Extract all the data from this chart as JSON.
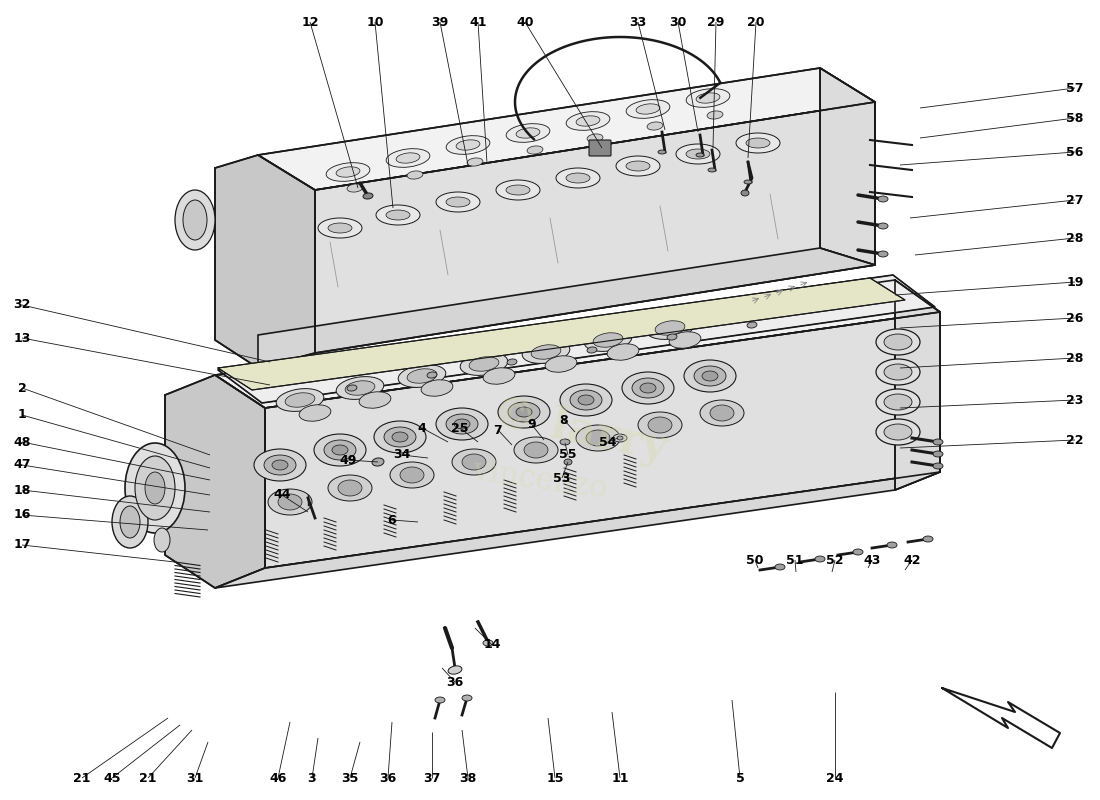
{
  "bg_color": "#ffffff",
  "lc": "#1a1a1a",
  "light_fill": "#f2f2f2",
  "mid_fill": "#e0e0e0",
  "dark_fill": "#c8c8c8",
  "yellow_fill": "#e8e8c0",
  "top_labels": [
    [
      "12",
      310,
      22,
      358,
      188
    ],
    [
      "10",
      375,
      22,
      393,
      208
    ],
    [
      "39",
      440,
      22,
      468,
      165
    ],
    [
      "41",
      478,
      22,
      487,
      163
    ],
    [
      "40",
      525,
      22,
      602,
      148
    ],
    [
      "33",
      638,
      22,
      665,
      130
    ],
    [
      "30",
      678,
      22,
      698,
      132
    ],
    [
      "29",
      716,
      22,
      713,
      148
    ],
    [
      "20",
      756,
      22,
      748,
      158
    ]
  ],
  "right_labels": [
    [
      "57",
      1075,
      88,
      920,
      108
    ],
    [
      "58",
      1075,
      118,
      920,
      138
    ],
    [
      "56",
      1075,
      152,
      900,
      165
    ],
    [
      "27",
      1075,
      200,
      910,
      218
    ],
    [
      "28",
      1075,
      238,
      915,
      255
    ],
    [
      "19",
      1075,
      282,
      895,
      295
    ],
    [
      "26",
      1075,
      318,
      900,
      328
    ],
    [
      "28",
      1075,
      358,
      900,
      368
    ],
    [
      "23",
      1075,
      400,
      900,
      408
    ],
    [
      "22",
      1075,
      440,
      900,
      448
    ]
  ],
  "left_labels": [
    [
      "32",
      22,
      305,
      270,
      362
    ],
    [
      "13",
      22,
      338,
      270,
      385
    ],
    [
      "2",
      22,
      388,
      210,
      455
    ],
    [
      "1",
      22,
      415,
      210,
      468
    ],
    [
      "48",
      22,
      442,
      210,
      480
    ],
    [
      "47",
      22,
      465,
      210,
      495
    ],
    [
      "18",
      22,
      490,
      210,
      512
    ],
    [
      "16",
      22,
      515,
      208,
      530
    ],
    [
      "17",
      22,
      545,
      175,
      562
    ]
  ],
  "bottom_labels": [
    [
      "21",
      82,
      778,
      168,
      718
    ],
    [
      "45",
      112,
      778,
      180,
      725
    ],
    [
      "21",
      148,
      778,
      192,
      730
    ],
    [
      "31",
      195,
      778,
      208,
      742
    ],
    [
      "46",
      278,
      778,
      290,
      722
    ],
    [
      "3",
      312,
      778,
      318,
      738
    ],
    [
      "35",
      350,
      778,
      360,
      742
    ],
    [
      "36",
      388,
      778,
      392,
      722
    ],
    [
      "37",
      432,
      778,
      432,
      732
    ],
    [
      "38",
      468,
      778,
      462,
      730
    ],
    [
      "15",
      555,
      778,
      548,
      718
    ],
    [
      "11",
      620,
      778,
      612,
      712
    ],
    [
      "5",
      740,
      778,
      732,
      700
    ],
    [
      "24",
      835,
      778,
      835,
      692
    ]
  ],
  "mid_labels": [
    [
      "49",
      348,
      460,
      378,
      462
    ],
    [
      "34",
      402,
      455,
      428,
      458
    ],
    [
      "44",
      282,
      495,
      308,
      512
    ],
    [
      "6",
      392,
      520,
      418,
      522
    ],
    [
      "4",
      422,
      428,
      448,
      442
    ],
    [
      "25",
      460,
      428,
      478,
      442
    ],
    [
      "7",
      498,
      430,
      512,
      445
    ],
    [
      "9",
      532,
      425,
      544,
      440
    ],
    [
      "8",
      564,
      420,
      575,
      432
    ],
    [
      "55",
      568,
      455,
      565,
      443
    ],
    [
      "54",
      608,
      442,
      618,
      438
    ],
    [
      "53",
      562,
      478,
      568,
      462
    ],
    [
      "14",
      492,
      645,
      475,
      628
    ],
    [
      "36",
      455,
      682,
      442,
      668
    ],
    [
      "50",
      755,
      560,
      758,
      568
    ],
    [
      "51",
      795,
      560,
      796,
      572
    ],
    [
      "52",
      835,
      560,
      832,
      572
    ],
    [
      "43",
      872,
      560,
      868,
      568
    ],
    [
      "42",
      912,
      560,
      905,
      570
    ]
  ]
}
